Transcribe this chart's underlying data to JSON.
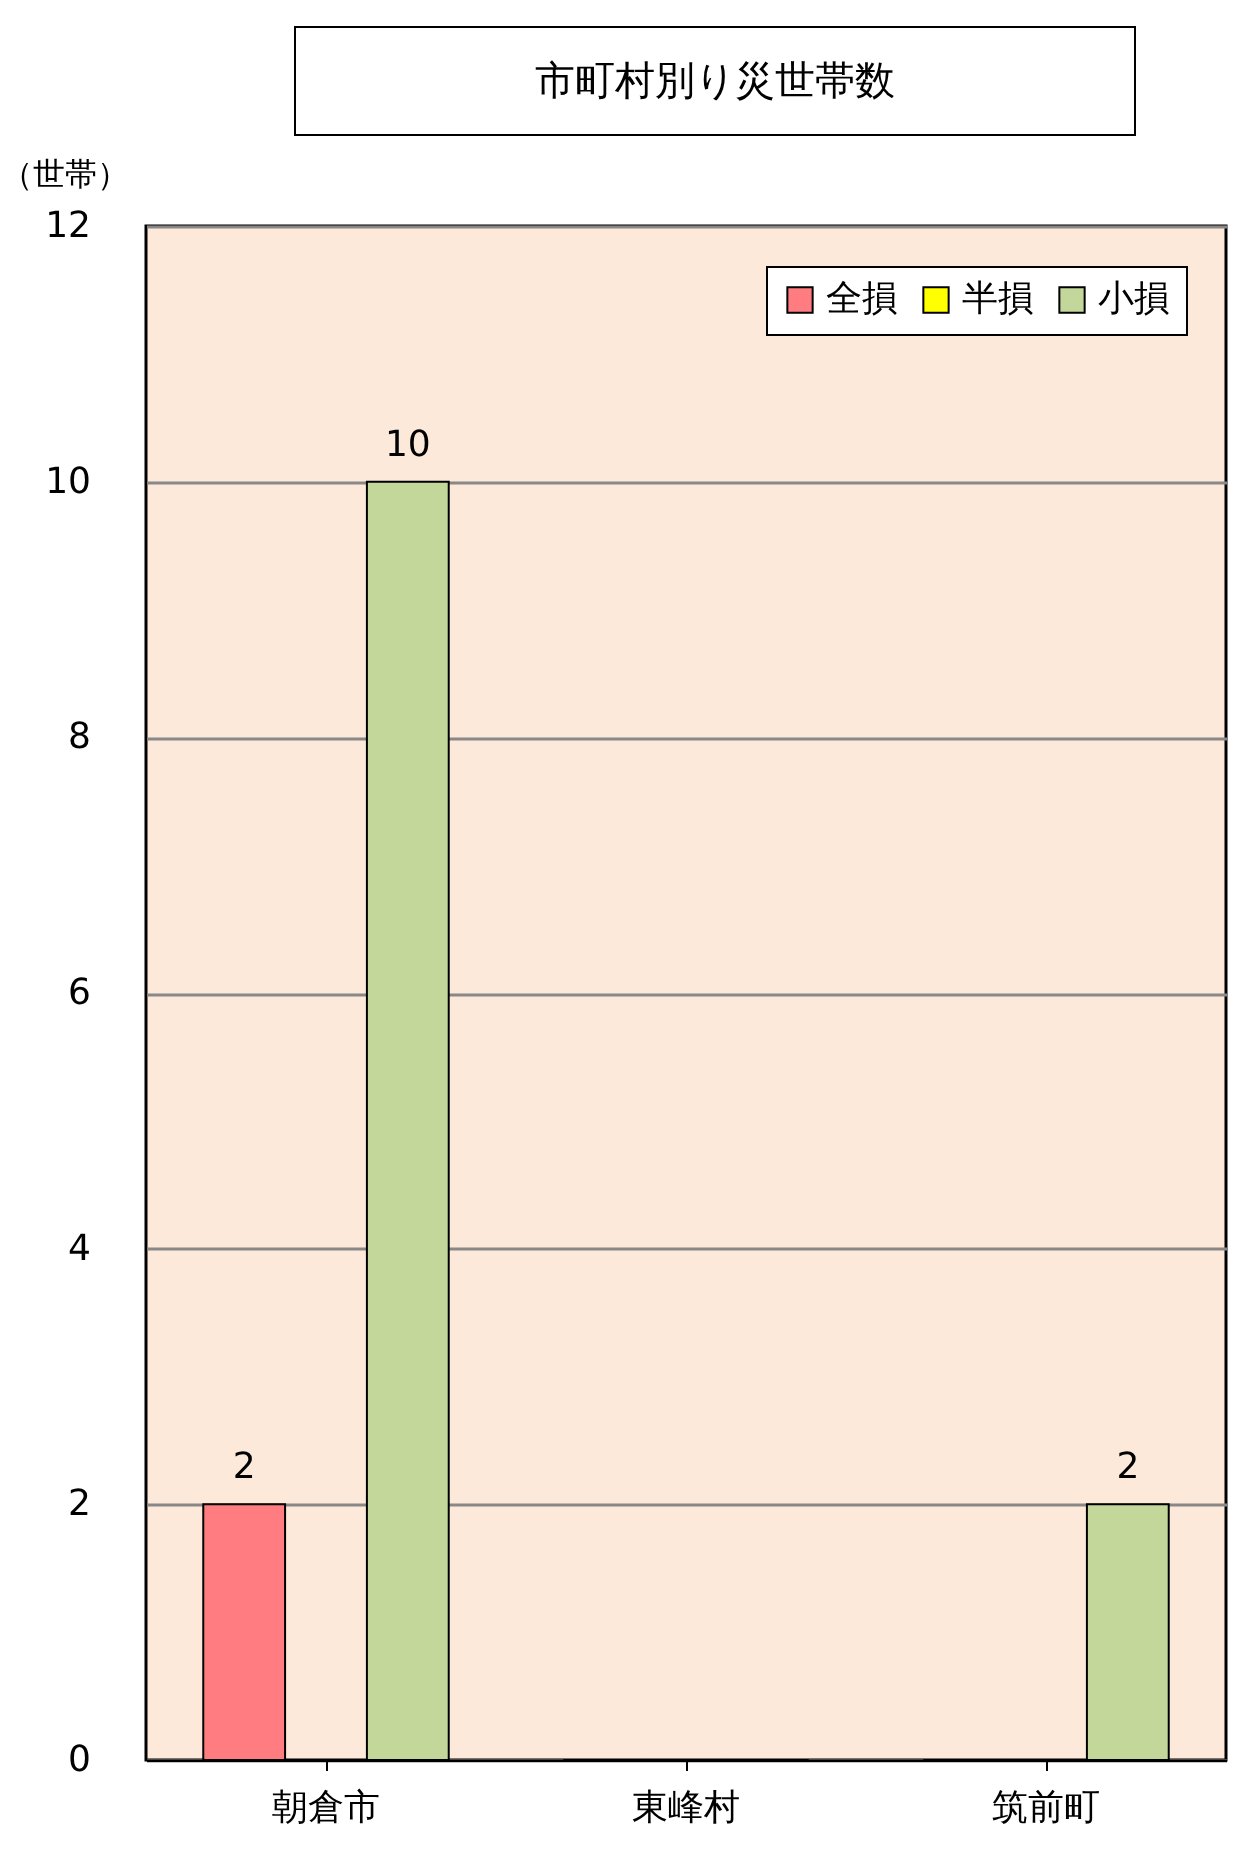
{
  "chart_data": {
    "type": "bar",
    "title": "市町村別り災世帯数",
    "ylabel": "（世帯）",
    "categories": [
      "朝倉市",
      "東峰村",
      "筑前町"
    ],
    "series": [
      {
        "name": "全損",
        "color": "#ff7c80",
        "values": [
          2,
          0,
          0
        ],
        "value_labels": [
          "2",
          null,
          null
        ]
      },
      {
        "name": "半損",
        "color": "#ffff00",
        "values": [
          0,
          0,
          0
        ],
        "value_labels": [
          null,
          null,
          null
        ]
      },
      {
        "name": "小損",
        "color": "#c4d79b",
        "values": [
          10,
          0,
          2
        ],
        "value_labels": [
          "10",
          null,
          "2"
        ]
      }
    ],
    "ylim": [
      0,
      12
    ],
    "yticks": [
      0,
      2,
      4,
      6,
      8,
      10,
      12
    ],
    "grid": "y",
    "legend": "top right"
  }
}
